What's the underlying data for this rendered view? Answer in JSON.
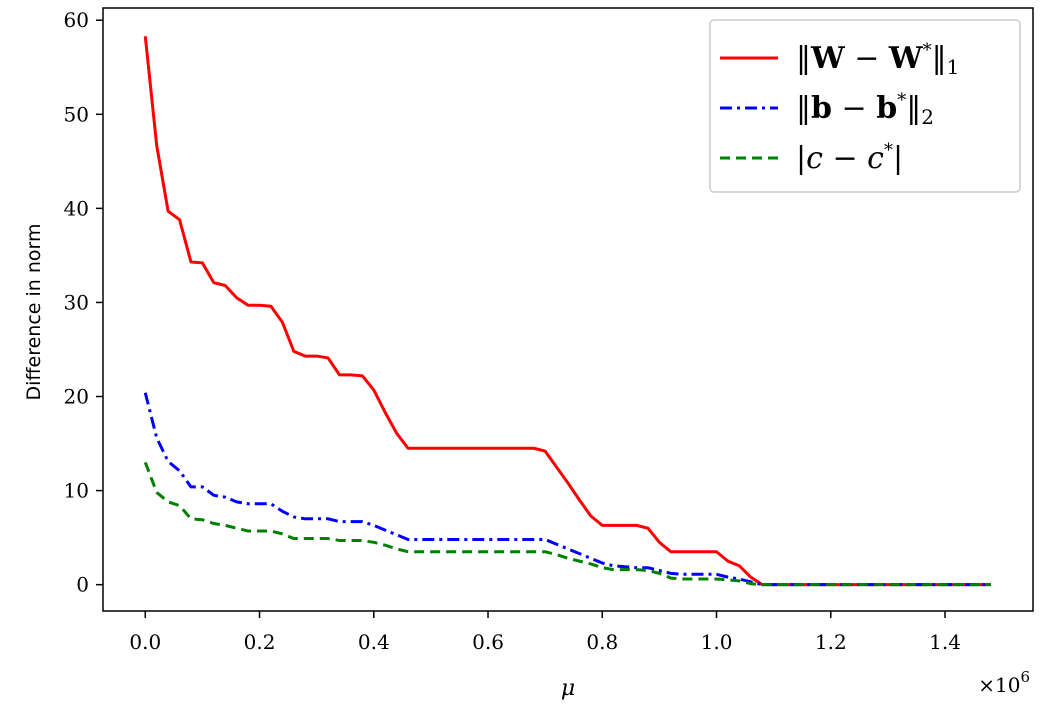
{
  "chart_data": {
    "type": "line",
    "xlabel": "μ",
    "ylabel": "Difference in norm",
    "x_offset_label": {
      "base": "×10",
      "exp": "6"
    },
    "xlim": [
      -0.074,
      1.554
    ],
    "ylim": [
      -2.8,
      61.3
    ],
    "x_ticks": [
      0.0,
      0.2,
      0.4,
      0.6,
      0.8,
      1.0,
      1.2,
      1.4
    ],
    "x_tick_labels": [
      "0.0",
      "0.2",
      "0.4",
      "0.6",
      "0.8",
      "1.0",
      "1.2",
      "1.4"
    ],
    "y_ticks": [
      0,
      10,
      20,
      30,
      40,
      50,
      60
    ],
    "y_tick_labels": [
      "0",
      "10",
      "20",
      "30",
      "40",
      "50",
      "60"
    ],
    "grid": false,
    "legend_position": "top-right",
    "series": [
      {
        "key": "W",
        "color": "#ff0000",
        "dash": "solid",
        "legend": {
          "l": "‖",
          "b1": "W",
          "m": " − ",
          "b2": "W",
          "sup": "*",
          "r": "‖",
          "sub": "1"
        },
        "x": [
          0.0,
          0.02,
          0.04,
          0.06,
          0.08,
          0.1,
          0.12,
          0.14,
          0.16,
          0.18,
          0.2,
          0.22,
          0.24,
          0.26,
          0.28,
          0.3,
          0.32,
          0.34,
          0.36,
          0.38,
          0.4,
          0.42,
          0.44,
          0.46,
          0.48,
          0.5,
          0.55,
          0.6,
          0.65,
          0.68,
          0.7,
          0.72,
          0.74,
          0.76,
          0.78,
          0.8,
          0.82,
          0.84,
          0.86,
          0.88,
          0.9,
          0.92,
          0.94,
          0.96,
          0.98,
          1.0,
          1.02,
          1.04,
          1.06,
          1.08,
          1.1,
          1.2,
          1.3,
          1.4,
          1.48
        ],
        "y": [
          58.3,
          46.7,
          39.7,
          38.8,
          34.3,
          34.2,
          32.1,
          31.8,
          30.5,
          29.7,
          29.7,
          29.6,
          27.9,
          24.8,
          24.3,
          24.3,
          24.1,
          22.3,
          22.3,
          22.2,
          20.7,
          18.3,
          16.1,
          14.5,
          14.5,
          14.5,
          14.5,
          14.5,
          14.5,
          14.5,
          14.2,
          12.5,
          10.8,
          9.0,
          7.3,
          6.3,
          6.3,
          6.3,
          6.3,
          6.0,
          4.5,
          3.5,
          3.5,
          3.5,
          3.5,
          3.5,
          2.5,
          2.0,
          0.8,
          0.0,
          0.0,
          0.0,
          0.0,
          0.0,
          0.0
        ]
      },
      {
        "key": "b",
        "color": "#0000ff",
        "dash": "dashdot",
        "legend": {
          "l": "‖",
          "b1": "b",
          "m": " − ",
          "b2": "b",
          "sup": "*",
          "r": "‖",
          "sub": "2"
        },
        "x": [
          0.0,
          0.02,
          0.04,
          0.06,
          0.08,
          0.1,
          0.12,
          0.14,
          0.16,
          0.18,
          0.2,
          0.22,
          0.24,
          0.26,
          0.28,
          0.3,
          0.32,
          0.34,
          0.36,
          0.38,
          0.4,
          0.42,
          0.44,
          0.46,
          0.5,
          0.55,
          0.6,
          0.65,
          0.7,
          0.72,
          0.74,
          0.76,
          0.78,
          0.8,
          0.82,
          0.84,
          0.86,
          0.88,
          0.9,
          0.92,
          0.94,
          0.96,
          0.98,
          1.0,
          1.02,
          1.04,
          1.06,
          1.08,
          1.1,
          1.2,
          1.3,
          1.4,
          1.48
        ],
        "y": [
          20.4,
          15.6,
          13.1,
          12.1,
          10.4,
          10.4,
          9.5,
          9.3,
          8.8,
          8.6,
          8.6,
          8.6,
          7.8,
          7.2,
          7.0,
          7.0,
          7.0,
          6.7,
          6.7,
          6.7,
          6.3,
          5.8,
          5.3,
          4.8,
          4.8,
          4.8,
          4.8,
          4.8,
          4.8,
          4.3,
          3.8,
          3.3,
          2.8,
          2.3,
          2.0,
          1.9,
          1.8,
          1.8,
          1.5,
          1.2,
          1.1,
          1.1,
          1.1,
          1.1,
          0.8,
          0.6,
          0.3,
          0.0,
          0.0,
          0.0,
          0.0,
          0.0,
          0.0
        ]
      },
      {
        "key": "c",
        "color": "#008000",
        "dash": "dashed",
        "legend": {
          "l": "|",
          "i1": "c",
          "m": " − ",
          "i2": "c",
          "sup": "*",
          "r": "|"
        },
        "x": [
          0.0,
          0.02,
          0.04,
          0.06,
          0.08,
          0.1,
          0.12,
          0.14,
          0.16,
          0.18,
          0.2,
          0.22,
          0.24,
          0.26,
          0.28,
          0.3,
          0.32,
          0.34,
          0.36,
          0.38,
          0.4,
          0.42,
          0.44,
          0.46,
          0.5,
          0.55,
          0.6,
          0.65,
          0.7,
          0.72,
          0.74,
          0.76,
          0.78,
          0.8,
          0.82,
          0.84,
          0.86,
          0.88,
          0.9,
          0.92,
          0.94,
          0.96,
          0.98,
          1.0,
          1.02,
          1.04,
          1.06,
          1.08,
          1.1,
          1.2,
          1.3,
          1.4,
          1.48
        ],
        "y": [
          13.0,
          9.8,
          8.8,
          8.4,
          7.0,
          6.9,
          6.5,
          6.3,
          6.0,
          5.7,
          5.7,
          5.7,
          5.4,
          4.9,
          4.9,
          4.9,
          4.9,
          4.7,
          4.7,
          4.7,
          4.5,
          4.2,
          3.8,
          3.5,
          3.5,
          3.5,
          3.5,
          3.5,
          3.5,
          3.2,
          2.8,
          2.5,
          2.2,
          1.8,
          1.6,
          1.6,
          1.6,
          1.5,
          1.2,
          0.7,
          0.6,
          0.6,
          0.6,
          0.6,
          0.5,
          0.4,
          0.1,
          0.0,
          0.0,
          0.0,
          0.0,
          0.0,
          0.0
        ]
      }
    ]
  }
}
